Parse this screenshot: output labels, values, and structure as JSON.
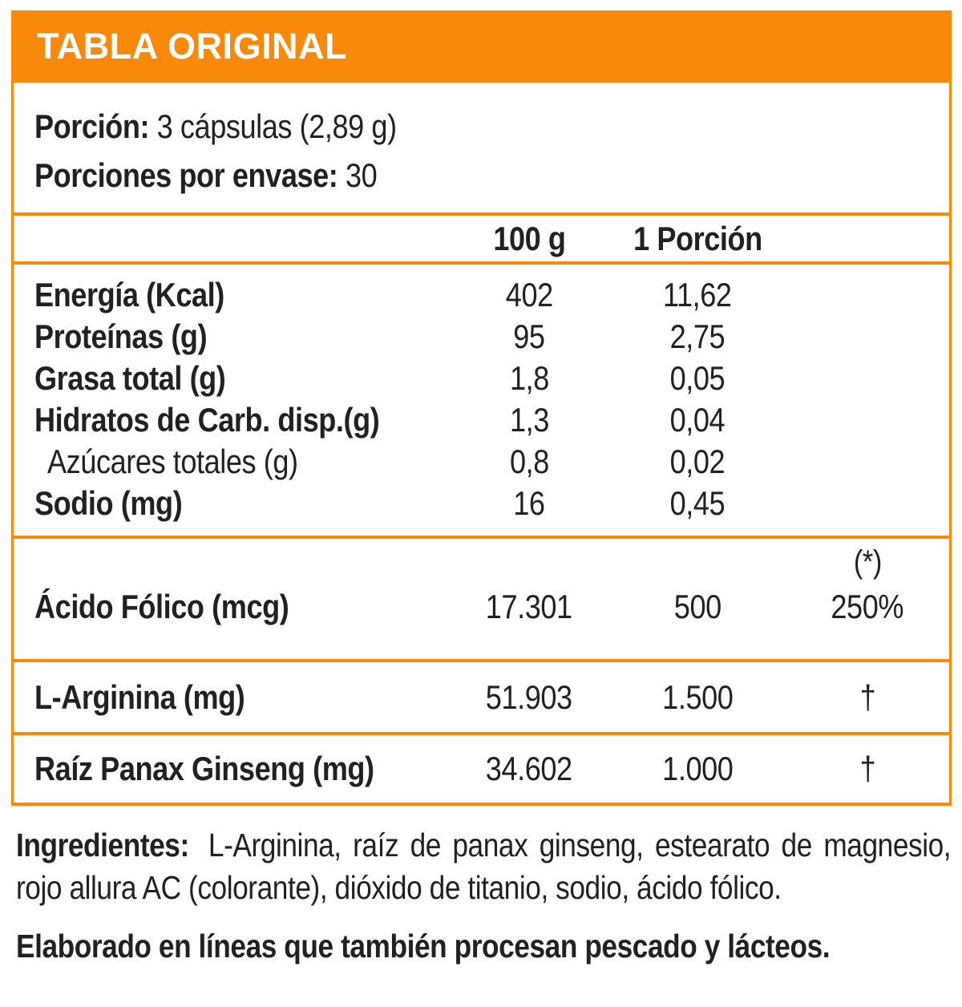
{
  "colors": {
    "accent": "#F9890B",
    "text": "#232020",
    "title_text": "#FFFFFF"
  },
  "header": {
    "title": "TABLA ORIGINAL"
  },
  "serving": {
    "portion_label": "Porción:",
    "portion_value": "3 cápsulas (2,89 g)",
    "servings_label": "Porciones por envase:",
    "servings_value": "30"
  },
  "table": {
    "columns": [
      "100 g",
      "1 Porción"
    ],
    "dv_marker": "(*)",
    "nutrition_rows": [
      {
        "label": "Energía (Kcal)",
        "per_100g": "402",
        "per_serving": "11,62"
      },
      {
        "label": "Proteínas (g)",
        "per_100g": "95",
        "per_serving": "2,75"
      },
      {
        "label": "Grasa total (g)",
        "per_100g": "1,8",
        "per_serving": "0,05"
      },
      {
        "label": "Hidratos de Carb. disp.(g)",
        "per_100g": "1,3",
        "per_serving": "0,04"
      },
      {
        "label": "Azúcares totales (g)",
        "per_100g": "0,8",
        "per_serving": "0,02"
      },
      {
        "label": "Sodio (mg)",
        "per_100g": "16",
        "per_serving": "0,45"
      }
    ],
    "active_rows": [
      {
        "label": "Ácido Fólico (mcg)",
        "per_100g": "17.301",
        "per_serving": "500",
        "daily_value": "250%"
      },
      {
        "label": "L-Arginina (mg)",
        "per_100g": "51.903",
        "per_serving": "1.500",
        "daily_value": "†"
      },
      {
        "label": "Raíz Panax Ginseng (mg)",
        "per_100g": "34.602",
        "per_serving": "1.000",
        "daily_value": "†"
      }
    ]
  },
  "footer": {
    "ingredients_label": "Ingredientes:",
    "ingredients_text": "L-Arginina, raíz de panax ginseng, estearato de magnesio, rojo allura AC (colorante), dióxido de titanio, sodio, ácido fólico.",
    "allergen_note": "Elaborado en líneas que también procesan pescado y lácteos."
  }
}
